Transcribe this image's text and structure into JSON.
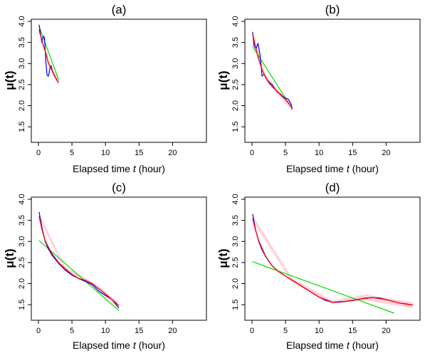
{
  "chart_data": [
    {
      "type": "line",
      "title": "(a)",
      "xlabel": "Elapsed time",
      "xlabel_var": "t",
      "xlabel_unit": "(hour)",
      "ylabel": "μ(t)",
      "xlim": [
        0,
        24
      ],
      "ylim": [
        1.3,
        4.0
      ],
      "xticks": [
        0,
        5,
        10,
        15,
        20
      ],
      "yticks": [
        "1.5",
        "2.0",
        "2.5",
        "3.0",
        "3.5",
        "4.0"
      ],
      "colors": {
        "raw": "#0000ff",
        "smooth": "#ff0000",
        "linear": "#00dd00",
        "band": "#ffc8d2"
      },
      "series": [
        {
          "role": "raw",
          "x": [
            0.1,
            0.3,
            0.5,
            0.7,
            0.9,
            1.1,
            1.3,
            1.5,
            1.7,
            1.9,
            2.1,
            2.4,
            2.7,
            3.0
          ],
          "y": [
            3.92,
            3.72,
            3.5,
            3.65,
            3.62,
            3.05,
            2.72,
            2.7,
            2.88,
            2.95,
            2.8,
            2.7,
            2.62,
            2.55
          ]
        },
        {
          "role": "smooth",
          "x": [
            0.1,
            0.5,
            1.0,
            1.5,
            2.0,
            2.5,
            3.0
          ],
          "y": [
            3.8,
            3.55,
            3.3,
            3.0,
            2.85,
            2.68,
            2.55
          ]
        },
        {
          "role": "linear",
          "x": [
            0.1,
            3.0
          ],
          "y": [
            3.88,
            2.62
          ]
        }
      ],
      "band": {
        "x": [
          0.1,
          1.0,
          2.0,
          3.0
        ],
        "upper": [
          3.86,
          3.34,
          2.9,
          2.64
        ],
        "lower": [
          3.74,
          3.26,
          2.8,
          2.46
        ]
      }
    },
    {
      "type": "line",
      "title": "(b)",
      "xlabel": "Elapsed time",
      "xlabel_var": "t",
      "xlabel_unit": "(hour)",
      "ylabel": "μ(t)",
      "xlim": [
        0,
        24
      ],
      "ylim": [
        1.3,
        4.0
      ],
      "xticks": [
        0,
        5,
        10,
        15,
        20
      ],
      "yticks": [
        "1.5",
        "2.0",
        "2.5",
        "3.0",
        "3.5",
        "4.0"
      ],
      "colors": {
        "raw": "#0000ff",
        "smooth": "#ff0000",
        "linear": "#00dd00",
        "band": "#ffc8d2"
      },
      "series": [
        {
          "role": "raw",
          "x": [
            0.1,
            0.3,
            0.6,
            0.9,
            1.2,
            1.5,
            1.8,
            2.2,
            2.6,
            3.0,
            3.4,
            3.8,
            4.2,
            4.6,
            5.0,
            5.4,
            5.8,
            6.0
          ],
          "y": [
            3.75,
            3.42,
            3.35,
            3.48,
            3.2,
            2.7,
            2.75,
            2.63,
            2.55,
            2.5,
            2.4,
            2.32,
            2.28,
            2.22,
            2.18,
            2.16,
            2.05,
            1.92
          ]
        },
        {
          "role": "smooth",
          "x": [
            0.1,
            0.5,
            1.0,
            1.5,
            2.0,
            2.5,
            3.0,
            3.5,
            4.0,
            4.5,
            5.0,
            5.5,
            6.0
          ],
          "y": [
            3.7,
            3.4,
            3.1,
            2.85,
            2.68,
            2.55,
            2.45,
            2.38,
            2.3,
            2.22,
            2.15,
            2.05,
            1.95
          ]
        },
        {
          "role": "linear",
          "x": [
            0.1,
            6.0
          ],
          "y": [
            3.4,
            1.93
          ]
        }
      ],
      "band": {
        "x": [
          0.1,
          2.0,
          4.0,
          6.0
        ],
        "upper": [
          3.78,
          2.74,
          2.36,
          2.02
        ],
        "lower": [
          3.62,
          2.62,
          2.24,
          1.86
        ]
      }
    },
    {
      "type": "line",
      "title": "(c)",
      "xlabel": "Elapsed time",
      "xlabel_var": "t",
      "xlabel_unit": "(hour)",
      "ylabel": "μ(t)",
      "xlim": [
        0,
        24
      ],
      "ylim": [
        1.3,
        4.0
      ],
      "xticks": [
        0,
        5,
        10,
        15,
        20
      ],
      "yticks": [
        "1.5",
        "2.0",
        "2.5",
        "3.0",
        "3.5",
        "4.0"
      ],
      "colors": {
        "raw": "#0000ff",
        "smooth": "#ff0000",
        "linear": "#00dd00",
        "band": "#ffc8d2"
      },
      "series": [
        {
          "role": "raw",
          "x": [
            0.1,
            0.5,
            1.0,
            1.5,
            2.0,
            3.0,
            4.0,
            5.0,
            6.0,
            7.0,
            8.0,
            9.0,
            10.0,
            11.0,
            12.0
          ],
          "y": [
            3.7,
            3.35,
            3.0,
            2.82,
            2.68,
            2.48,
            2.32,
            2.2,
            2.12,
            2.05,
            1.98,
            1.82,
            1.72,
            1.62,
            1.42
          ]
        },
        {
          "role": "smooth",
          "x": [
            0.1,
            0.5,
            1.0,
            1.5,
            2.0,
            3.0,
            4.0,
            5.0,
            6.0,
            7.0,
            8.0,
            9.0,
            10.0,
            11.0,
            12.0
          ],
          "y": [
            3.6,
            3.3,
            3.02,
            2.86,
            2.72,
            2.5,
            2.35,
            2.22,
            2.12,
            2.08,
            2.0,
            1.88,
            1.75,
            1.62,
            1.48
          ]
        },
        {
          "role": "linear",
          "x": [
            0.1,
            12.0
          ],
          "y": [
            3.02,
            1.36
          ]
        }
      ],
      "band": {
        "x": [
          0.1,
          4.0,
          8.0,
          12.0
        ],
        "upper": [
          3.66,
          2.4,
          2.05,
          1.56
        ],
        "lower": [
          3.54,
          2.3,
          1.95,
          1.4
        ]
      }
    },
    {
      "type": "line",
      "title": "(d)",
      "xlabel": "Elapsed time",
      "xlabel_var": "t",
      "xlabel_unit": "(hour)",
      "ylabel": "μ(t)",
      "xlim": [
        0,
        24
      ],
      "ylim": [
        1.3,
        4.0
      ],
      "xticks": [
        0,
        5,
        10,
        15,
        20
      ],
      "yticks": [
        "1.5",
        "2.0",
        "2.5",
        "3.0",
        "3.5",
        "4.0"
      ],
      "colors": {
        "raw": "#0000ff",
        "smooth": "#ff0000",
        "linear": "#00dd00",
        "band": "#ffc8d2"
      },
      "series": [
        {
          "role": "raw",
          "x": [
            0.1,
            0.5,
            1.0,
            1.5,
            2.0,
            3.0,
            4.0,
            5.0,
            6.0,
            7.0,
            8.0,
            9.0,
            10.0,
            11.0,
            12.0,
            13.0,
            14.0,
            15.0,
            16.0,
            17.0,
            18.0,
            19.0,
            20.0,
            21.0,
            22.0,
            23.0,
            24.0
          ],
          "y": [
            3.65,
            3.3,
            3.0,
            2.8,
            2.65,
            2.42,
            2.28,
            2.18,
            2.08,
            1.98,
            1.88,
            1.78,
            1.68,
            1.6,
            1.56,
            1.56,
            1.58,
            1.6,
            1.63,
            1.66,
            1.67,
            1.66,
            1.62,
            1.58,
            1.54,
            1.52,
            1.49
          ]
        },
        {
          "role": "smooth",
          "x": [
            0.1,
            0.5,
            1.0,
            2.0,
            3.0,
            4.0,
            5.0,
            6.0,
            8.0,
            10.0,
            12.0,
            14.0,
            16.0,
            18.0,
            20.0,
            22.0,
            24.0
          ],
          "y": [
            3.55,
            3.28,
            3.02,
            2.66,
            2.42,
            2.28,
            2.18,
            2.08,
            1.88,
            1.68,
            1.56,
            1.58,
            1.63,
            1.67,
            1.62,
            1.54,
            1.49
          ]
        },
        {
          "role": "linear",
          "x": [
            0.1,
            21.2
          ],
          "y": [
            2.52,
            1.3
          ]
        }
      ],
      "band": {
        "x": [
          0.1,
          6.0,
          12.0,
          17.0,
          24.0
        ],
        "upper": [
          3.62,
          2.13,
          1.6,
          1.74,
          1.56
        ],
        "lower": [
          3.48,
          2.03,
          1.52,
          1.6,
          1.42
        ]
      }
    }
  ]
}
